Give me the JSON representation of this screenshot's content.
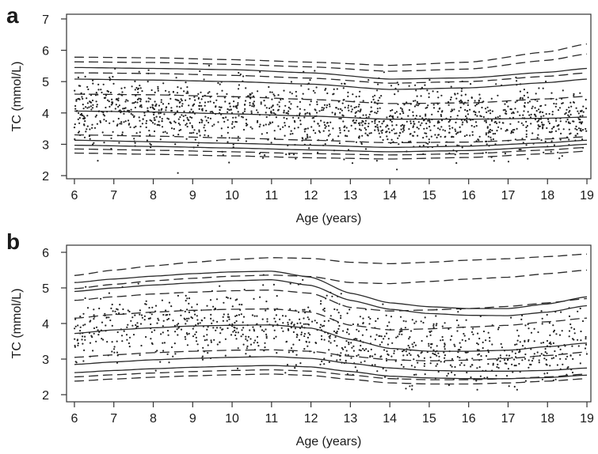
{
  "chart_data": [
    {
      "panel": "a",
      "type": "scatter",
      "xlabel": "Age (years)",
      "ylabel": "TC (mmol/L)",
      "xlim": [
        5.8,
        19.1
      ],
      "ylim": [
        1.9,
        7.15
      ],
      "xticks": [
        "6",
        "7",
        "8",
        "9",
        "10",
        "11",
        "12",
        "13",
        "14",
        "15",
        "16",
        "17",
        "18",
        "19"
      ],
      "yticks": [
        "2",
        "3",
        "4",
        "5",
        "6",
        "7"
      ],
      "grid": false,
      "legend": "none",
      "point_count": 1500,
      "points_summary": {
        "x_range": [
          6,
          19
        ],
        "y_center": 4.0,
        "y_spread": 0.75
      },
      "solid_centiles": [
        {
          "x": [
            6,
            8,
            10,
            12,
            14,
            16,
            18,
            19
          ],
          "y": [
            5.45,
            5.42,
            5.38,
            5.28,
            5.08,
            5.12,
            5.3,
            5.42
          ]
        },
        {
          "x": [
            6,
            8,
            10,
            12,
            14,
            16,
            18,
            19
          ],
          "y": [
            5.08,
            5.05,
            5.0,
            4.92,
            4.75,
            4.8,
            4.97,
            5.08
          ]
        },
        {
          "x": [
            6,
            8,
            10,
            12,
            14,
            16,
            18,
            19
          ],
          "y": [
            4.06,
            4.03,
            3.97,
            3.9,
            3.8,
            3.8,
            3.83,
            3.87
          ]
        },
        {
          "x": [
            6,
            8,
            10,
            12,
            14,
            16,
            18,
            19
          ],
          "y": [
            3.13,
            3.08,
            3.03,
            2.97,
            2.9,
            2.94,
            3.05,
            3.13
          ]
        },
        {
          "x": [
            6,
            8,
            10,
            12,
            14,
            16,
            18,
            19
          ],
          "y": [
            2.97,
            2.93,
            2.88,
            2.82,
            2.76,
            2.8,
            2.92,
            3.0
          ]
        }
      ],
      "dashed_centiles": [
        {
          "x": [
            6,
            8,
            10,
            12,
            14,
            16,
            18,
            19
          ],
          "y": [
            5.78,
            5.76,
            5.7,
            5.62,
            5.52,
            5.62,
            5.95,
            6.2
          ]
        },
        {
          "x": [
            6,
            8,
            10,
            12,
            14,
            16,
            18,
            19
          ],
          "y": [
            5.63,
            5.61,
            5.55,
            5.47,
            5.33,
            5.4,
            5.68,
            5.88
          ]
        },
        {
          "x": [
            6,
            8,
            10,
            12,
            14,
            16,
            18,
            19
          ],
          "y": [
            5.28,
            5.26,
            5.2,
            5.11,
            4.95,
            5.0,
            5.17,
            5.28
          ]
        },
        {
          "x": [
            6,
            8,
            10,
            12,
            14,
            16,
            18,
            19
          ],
          "y": [
            4.6,
            4.58,
            4.52,
            4.43,
            4.3,
            4.32,
            4.45,
            4.53
          ]
        },
        {
          "x": [
            6,
            8,
            10,
            12,
            14,
            16,
            18,
            19
          ],
          "y": [
            3.3,
            3.26,
            3.2,
            3.13,
            3.05,
            3.07,
            3.17,
            3.24
          ]
        },
        {
          "x": [
            6,
            8,
            10,
            12,
            14,
            16,
            18,
            19
          ],
          "y": [
            2.85,
            2.81,
            2.76,
            2.7,
            2.66,
            2.7,
            2.82,
            2.9
          ]
        },
        {
          "x": [
            6,
            8,
            10,
            12,
            14,
            16,
            18,
            19
          ],
          "y": [
            2.72,
            2.68,
            2.63,
            2.57,
            2.53,
            2.58,
            2.7,
            2.78
          ]
        }
      ]
    },
    {
      "panel": "b",
      "type": "scatter",
      "xlabel": "Age (years)",
      "ylabel": "TC (mmol/L)",
      "xlim": [
        5.8,
        19.1
      ],
      "ylim": [
        1.8,
        6.2
      ],
      "xticks": [
        "6",
        "7",
        "8",
        "9",
        "10",
        "11",
        "12",
        "13",
        "14",
        "15",
        "16",
        "17",
        "18",
        "19"
      ],
      "yticks": [
        "2",
        "3",
        "4",
        "5",
        "6"
      ],
      "grid": false,
      "legend": "none",
      "point_count": 1000,
      "points_summary": {
        "x_range": [
          6,
          19
        ],
        "y_center": 3.7,
        "y_spread": 0.7
      },
      "solid_centiles": [
        {
          "x": [
            6,
            7,
            8,
            9,
            10,
            11,
            12,
            13,
            14,
            15,
            16,
            17,
            18,
            19
          ],
          "y": [
            5.15,
            5.25,
            5.33,
            5.4,
            5.45,
            5.47,
            5.3,
            4.85,
            4.58,
            4.47,
            4.42,
            4.42,
            4.55,
            4.75
          ]
        },
        {
          "x": [
            6,
            7,
            8,
            9,
            10,
            11,
            12,
            13,
            14,
            15,
            16,
            17,
            18,
            19
          ],
          "y": [
            4.9,
            5.0,
            5.08,
            5.14,
            5.2,
            5.23,
            5.07,
            4.65,
            4.4,
            4.28,
            4.23,
            4.22,
            4.32,
            4.5
          ]
        },
        {
          "x": [
            6,
            7,
            8,
            9,
            10,
            11,
            12,
            13,
            14,
            15,
            16,
            17,
            18,
            19
          ],
          "y": [
            3.72,
            3.82,
            3.88,
            3.93,
            3.95,
            3.96,
            3.87,
            3.55,
            3.3,
            3.22,
            3.22,
            3.25,
            3.35,
            3.45
          ]
        },
        {
          "x": [
            6,
            7,
            8,
            9,
            10,
            11,
            12,
            13,
            14,
            15,
            16,
            17,
            18,
            19
          ],
          "y": [
            2.85,
            2.92,
            2.98,
            3.02,
            3.05,
            3.07,
            3.02,
            2.88,
            2.75,
            2.68,
            2.66,
            2.66,
            2.68,
            2.75
          ]
        },
        {
          "x": [
            6,
            7,
            8,
            9,
            10,
            11,
            12,
            13,
            14,
            15,
            16,
            17,
            18,
            19
          ],
          "y": [
            2.62,
            2.68,
            2.73,
            2.77,
            2.8,
            2.82,
            2.78,
            2.65,
            2.52,
            2.47,
            2.45,
            2.45,
            2.48,
            2.55
          ]
        }
      ],
      "dashed_centiles": [
        {
          "x": [
            6,
            7,
            8,
            9,
            10,
            11,
            12,
            13,
            14,
            15,
            16,
            17,
            18,
            19
          ],
          "y": [
            5.35,
            5.5,
            5.62,
            5.72,
            5.8,
            5.85,
            5.83,
            5.72,
            5.68,
            5.72,
            5.78,
            5.82,
            5.88,
            5.95
          ]
        },
        {
          "x": [
            6,
            7,
            8,
            9,
            10,
            11,
            12,
            13,
            14,
            15,
            16,
            17,
            18,
            19
          ],
          "y": [
            4.98,
            5.1,
            5.2,
            5.27,
            5.33,
            5.36,
            5.32,
            5.15,
            5.12,
            5.18,
            5.25,
            5.3,
            5.4,
            5.5
          ]
        },
        {
          "x": [
            6,
            7,
            8,
            9,
            10,
            11,
            12,
            13,
            14,
            15,
            16,
            17,
            18,
            19
          ],
          "y": [
            4.65,
            4.75,
            4.83,
            4.88,
            4.92,
            4.94,
            4.85,
            4.45,
            4.35,
            4.38,
            4.42,
            4.48,
            4.58,
            4.7
          ]
        },
        {
          "x": [
            6,
            7,
            8,
            9,
            10,
            11,
            12,
            13,
            14,
            15,
            16,
            17,
            18,
            19
          ],
          "y": [
            4.15,
            4.25,
            4.32,
            4.37,
            4.4,
            4.41,
            4.32,
            3.95,
            3.82,
            3.85,
            3.9,
            3.95,
            4.05,
            4.15
          ]
        },
        {
          "x": [
            6,
            7,
            8,
            9,
            10,
            11,
            12,
            13,
            14,
            15,
            16,
            17,
            18,
            19
          ],
          "y": [
            3.05,
            3.12,
            3.18,
            3.22,
            3.25,
            3.26,
            3.22,
            3.08,
            2.98,
            2.95,
            2.97,
            3.02,
            3.1,
            3.2
          ]
        },
        {
          "x": [
            6,
            7,
            8,
            9,
            10,
            11,
            12,
            13,
            14,
            15,
            16,
            17,
            18,
            19
          ],
          "y": [
            2.5,
            2.56,
            2.61,
            2.65,
            2.68,
            2.7,
            2.66,
            2.55,
            2.45,
            2.42,
            2.42,
            2.45,
            2.5,
            2.58
          ]
        },
        {
          "x": [
            6,
            7,
            8,
            9,
            10,
            11,
            12,
            13,
            14,
            15,
            16,
            17,
            18,
            19
          ],
          "y": [
            2.38,
            2.44,
            2.49,
            2.53,
            2.56,
            2.58,
            2.54,
            2.43,
            2.33,
            2.3,
            2.3,
            2.33,
            2.38,
            2.45
          ]
        }
      ]
    }
  ],
  "labels": {
    "panel_a": "a",
    "panel_b": "b"
  }
}
